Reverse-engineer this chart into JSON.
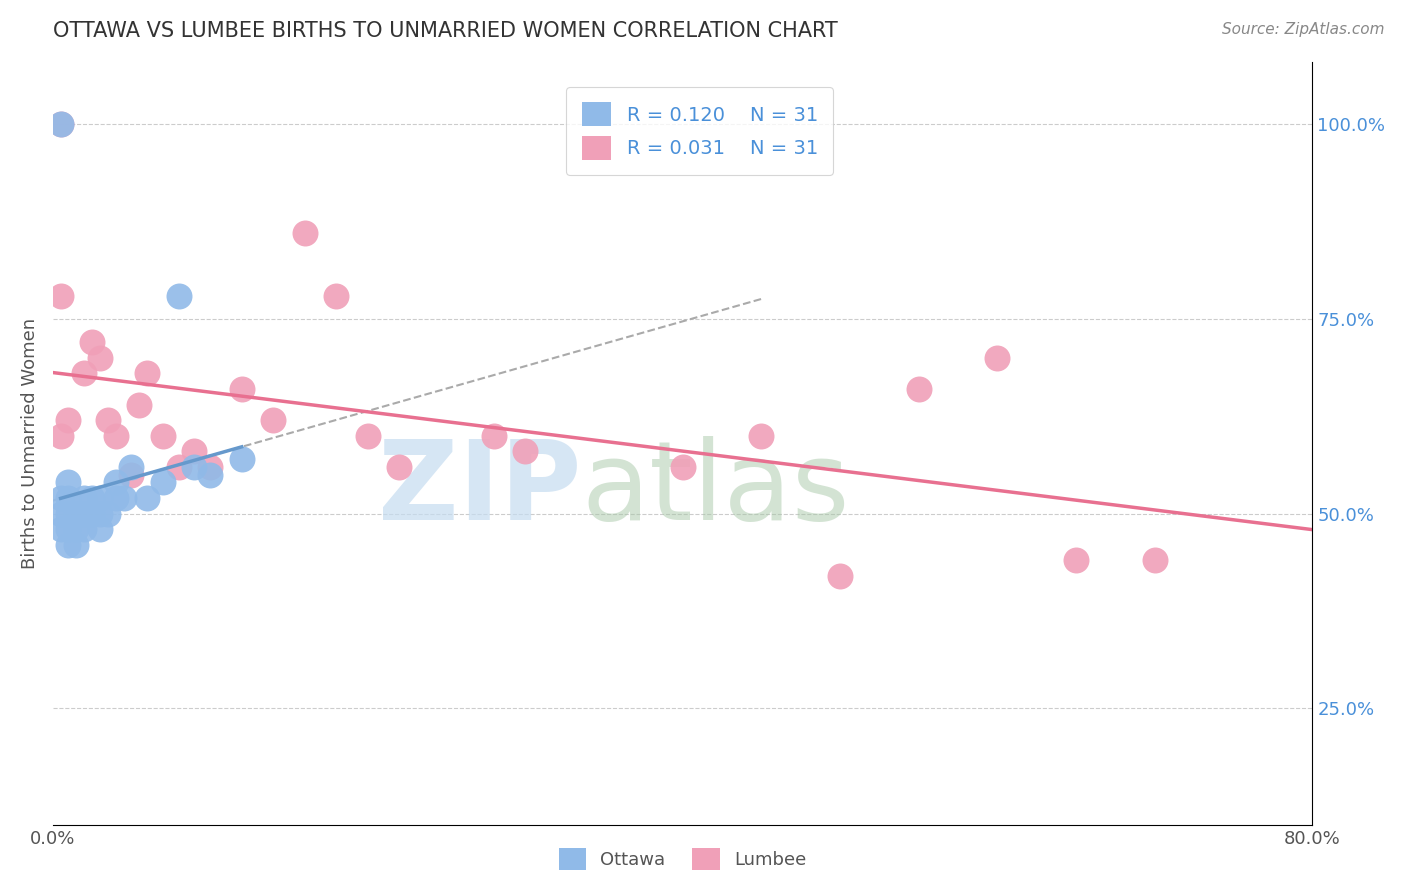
{
  "title": "OTTAWA VS LUMBEE BIRTHS TO UNMARRIED WOMEN CORRELATION CHART",
  "source_text": "Source: ZipAtlas.com",
  "ylabel": "Births to Unmarried Women",
  "xlim": [
    0.0,
    0.8
  ],
  "ylim": [
    0.1,
    1.08
  ],
  "xticks": [
    0.0,
    0.1,
    0.2,
    0.3,
    0.4,
    0.5,
    0.6,
    0.7,
    0.8
  ],
  "xticklabels": [
    "0.0%",
    "",
    "",
    "",
    "",
    "",
    "",
    "",
    "80.0%"
  ],
  "yticks_right": [
    0.25,
    0.5,
    0.75,
    1.0
  ],
  "ytick_right_labels": [
    "25.0%",
    "50.0%",
    "75.0%",
    "100.0%"
  ],
  "ottawa_color": "#90BAE8",
  "lumbee_color": "#F0A0B8",
  "ottawa_trend_color": "#6699CC",
  "lumbee_trend_color": "#E87090",
  "ottawa_R": 0.12,
  "lumbee_R": 0.031,
  "N": 31,
  "legend_label_ottawa": "Ottawa",
  "legend_label_lumbee": "Lumbee",
  "grid_color": "#CCCCCC",
  "ottawa_x": [
    0.005,
    0.005,
    0.005,
    0.01,
    0.01,
    0.01,
    0.01,
    0.01,
    0.015,
    0.015,
    0.015,
    0.02,
    0.02,
    0.02,
    0.025,
    0.025,
    0.03,
    0.03,
    0.03,
    0.035,
    0.04,
    0.04,
    0.045,
    0.05,
    0.06,
    0.07,
    0.08,
    0.09,
    0.1,
    0.12,
    0.005
  ],
  "ottawa_y": [
    0.48,
    0.5,
    0.52,
    0.46,
    0.48,
    0.5,
    0.52,
    0.54,
    0.46,
    0.48,
    0.5,
    0.48,
    0.5,
    0.52,
    0.5,
    0.52,
    0.48,
    0.5,
    0.52,
    0.5,
    0.52,
    0.54,
    0.52,
    0.56,
    0.52,
    0.54,
    0.78,
    0.56,
    0.55,
    0.57,
    1.0
  ],
  "lumbee_x": [
    0.005,
    0.01,
    0.02,
    0.025,
    0.03,
    0.035,
    0.04,
    0.05,
    0.055,
    0.06,
    0.07,
    0.08,
    0.09,
    0.1,
    0.12,
    0.14,
    0.16,
    0.18,
    0.2,
    0.22,
    0.28,
    0.3,
    0.4,
    0.45,
    0.5,
    0.55,
    0.6,
    0.65,
    0.7,
    0.005,
    0.005
  ],
  "lumbee_y": [
    0.6,
    0.62,
    0.68,
    0.72,
    0.7,
    0.62,
    0.6,
    0.55,
    0.64,
    0.68,
    0.6,
    0.56,
    0.58,
    0.56,
    0.66,
    0.62,
    0.86,
    0.78,
    0.6,
    0.56,
    0.6,
    0.58,
    0.56,
    0.6,
    0.42,
    0.66,
    0.7,
    0.44,
    0.44,
    0.78,
    1.0
  ]
}
